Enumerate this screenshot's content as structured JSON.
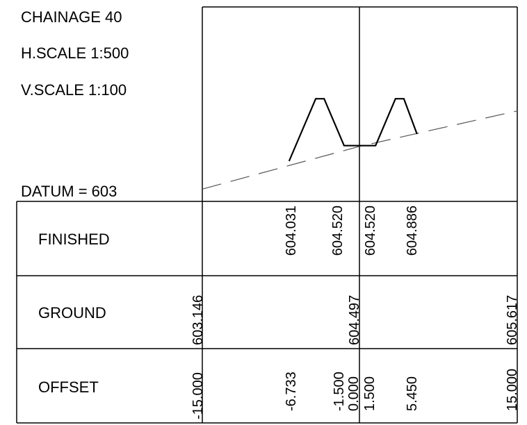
{
  "header": {
    "chainage": "CHAINAGE 40",
    "h_scale": "H.SCALE 1:500",
    "v_scale": "V.SCALE 1:100",
    "datum": "DATUM = 603"
  },
  "rows": {
    "finished": "FINISHED",
    "ground": "GROUND",
    "offset": "OFFSET"
  },
  "finished_values": [
    "604.031",
    "604.520",
    "604.520",
    "604.886"
  ],
  "ground_values": [
    "603.146",
    "604.497",
    "605.617"
  ],
  "offset_values": [
    "-15.000",
    "-6.733",
    "-1.500",
    "0.000",
    "1.500",
    "5.450",
    "15.000"
  ],
  "chart_data": {
    "type": "line",
    "datum": 603,
    "xlim": [
      -15,
      15
    ],
    "series": [
      {
        "style": "dashed",
        "points": [
          [
            -15.0,
            603.146
          ],
          [
            0.0,
            604.497
          ],
          [
            15.0,
            605.617
          ]
        ]
      },
      {
        "style": "solid",
        "points": [
          [
            -6.733,
            604.031
          ],
          [
            -4.2,
            606.0
          ],
          [
            -3.4,
            606.0
          ],
          [
            -1.5,
            604.52
          ],
          [
            0.0,
            604.52
          ],
          [
            1.5,
            604.52
          ],
          [
            3.4,
            606.0
          ],
          [
            4.2,
            606.0
          ],
          [
            5.45,
            604.886
          ]
        ]
      }
    ]
  }
}
